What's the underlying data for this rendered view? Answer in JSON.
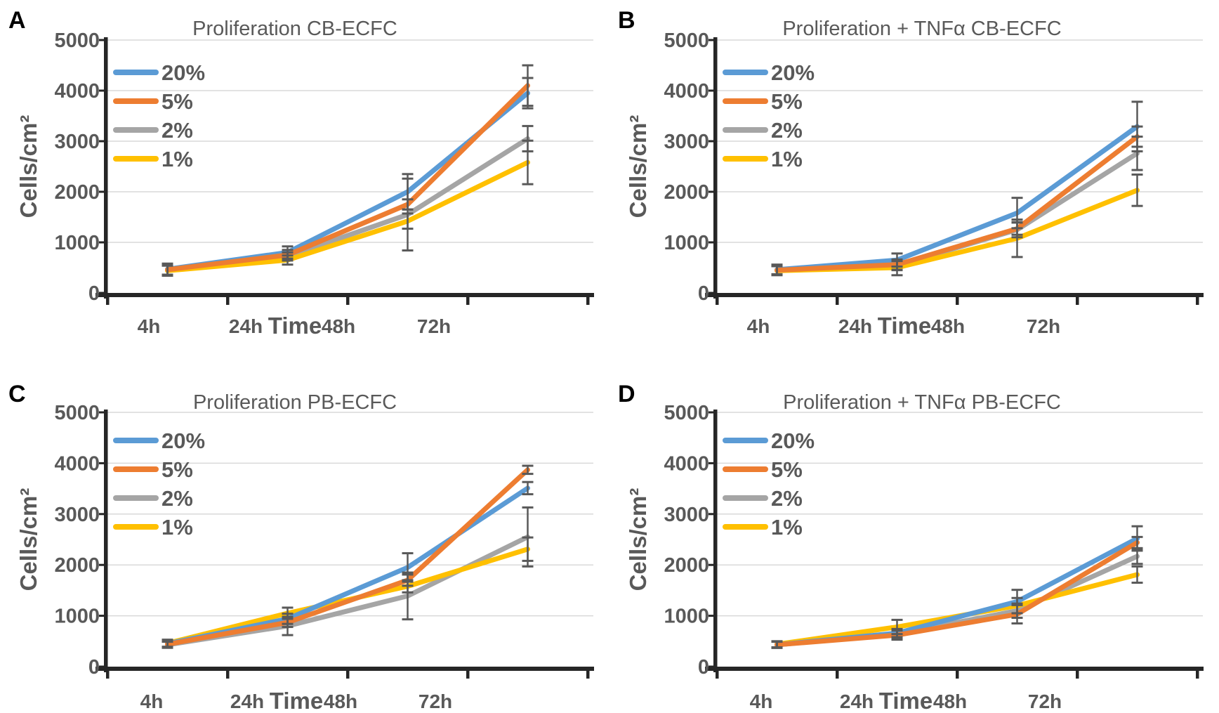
{
  "figure": {
    "background": "#ffffff",
    "text_color": "#595959",
    "axis_color": "#262626",
    "grid_color": "#d9d9d9",
    "errorbar_color": "#595959"
  },
  "legend": {
    "items": [
      {
        "label": "20%",
        "color": "#5B9BD5"
      },
      {
        "label": "5%",
        "color": "#ED7D31"
      },
      {
        "label": "2%",
        "color": "#A5A5A5"
      },
      {
        "label": "1%",
        "color": "#FFC000"
      }
    ],
    "position": "top-left-inside"
  },
  "chart_data": [
    {
      "panel_letter": "A",
      "type": "line",
      "title": "Proliferation CB-ECFC",
      "xlabel": "Time",
      "ylabel": "Cells/cm²",
      "categories": [
        "4h",
        "24h",
        "48h",
        "72h"
      ],
      "y_ticks": [
        0,
        1000,
        2000,
        3000,
        4000,
        5000
      ],
      "ylim": [
        0,
        5000
      ],
      "grid": true,
      "series": [
        {
          "name": "20%",
          "color": "#5B9BD5",
          "values": [
            470,
            800,
            2000,
            3950
          ],
          "errors": [
            110,
            120,
            350,
            300
          ]
        },
        {
          "name": "5%",
          "color": "#ED7D31",
          "values": [
            460,
            750,
            1750,
            4100
          ],
          "errors": [
            100,
            100,
            100,
            400
          ]
        },
        {
          "name": "2%",
          "color": "#A5A5A5",
          "values": [
            450,
            720,
            1550,
            3050
          ],
          "errors": [
            90,
            80,
            710,
            250
          ]
        },
        {
          "name": "1%",
          "color": "#FFC000",
          "values": [
            440,
            650,
            1420,
            2580
          ],
          "errors": [
            100,
            90,
            150,
            430
          ]
        }
      ]
    },
    {
      "panel_letter": "B",
      "type": "line",
      "title": "Proliferation + TNFα CB-ECFC",
      "xlabel": "Time",
      "ylabel": "Cells/cm²",
      "categories": [
        "4h",
        "24h",
        "48h",
        "72h"
      ],
      "y_ticks": [
        0,
        1000,
        2000,
        3000,
        4000,
        5000
      ],
      "ylim": [
        0,
        5000
      ],
      "grid": true,
      "series": [
        {
          "name": "20%",
          "color": "#5B9BD5",
          "values": [
            460,
            650,
            1580,
            3290
          ],
          "errors": [
            100,
            130,
            300,
            490
          ]
        },
        {
          "name": "5%",
          "color": "#ED7D31",
          "values": [
            450,
            560,
            1270,
            3090
          ],
          "errors": [
            90,
            100,
            120,
            200
          ]
        },
        {
          "name": "2%",
          "color": "#A5A5A5",
          "values": [
            450,
            540,
            1250,
            2760
          ],
          "errors": [
            80,
            90,
            150,
            330
          ]
        },
        {
          "name": "1%",
          "color": "#FFC000",
          "values": [
            440,
            500,
            1080,
            2030
          ],
          "errors": [
            90,
            150,
            370,
            310
          ]
        }
      ]
    },
    {
      "panel_letter": "C",
      "type": "line",
      "title": "Proliferation PB-ECFC",
      "xlabel": "Time",
      "ylabel": "Cells/cm²",
      "categories": [
        "4h",
        "24h",
        "48h",
        "72h"
      ],
      "y_ticks": [
        0,
        1000,
        2000,
        3000,
        4000,
        5000
      ],
      "ylim": [
        0,
        5000
      ],
      "grid": true,
      "series": [
        {
          "name": "20%",
          "color": "#5B9BD5",
          "values": [
            450,
            940,
            1950,
            3510
          ],
          "errors": [
            60,
            100,
            280,
            120
          ]
        },
        {
          "name": "5%",
          "color": "#ED7D31",
          "values": [
            440,
            870,
            1700,
            3870
          ],
          "errors": [
            60,
            90,
            110,
            80
          ]
        },
        {
          "name": "2%",
          "color": "#A5A5A5",
          "values": [
            430,
            800,
            1390,
            2550
          ],
          "errors": [
            60,
            180,
            460,
            580
          ]
        },
        {
          "name": "1%",
          "color": "#FFC000",
          "values": [
            460,
            1050,
            1580,
            2310
          ],
          "errors": [
            70,
            110,
            120,
            230
          ]
        }
      ]
    },
    {
      "panel_letter": "D",
      "type": "line",
      "title": "Proliferation + TNFα PB-ECFC",
      "xlabel": "Time",
      "ylabel": "Cells/cm²",
      "categories": [
        "4h",
        "24h",
        "48h",
        "72h"
      ],
      "y_ticks": [
        0,
        1000,
        2000,
        3000,
        4000,
        5000
      ],
      "ylim": [
        0,
        5000
      ],
      "grid": true,
      "series": [
        {
          "name": "20%",
          "color": "#5B9BD5",
          "values": [
            430,
            660,
            1280,
            2520
          ],
          "errors": [
            60,
            80,
            230,
            240
          ]
        },
        {
          "name": "5%",
          "color": "#ED7D31",
          "values": [
            430,
            620,
            1030,
            2440
          ],
          "errors": [
            60,
            90,
            180,
            110
          ]
        },
        {
          "name": "2%",
          "color": "#A5A5A5",
          "values": [
            430,
            640,
            1100,
            2170
          ],
          "errors": [
            60,
            100,
            140,
            150
          ]
        },
        {
          "name": "1%",
          "color": "#FFC000",
          "values": [
            440,
            780,
            1200,
            1810
          ],
          "errors": [
            60,
            140,
            150,
            160
          ]
        }
      ]
    }
  ]
}
